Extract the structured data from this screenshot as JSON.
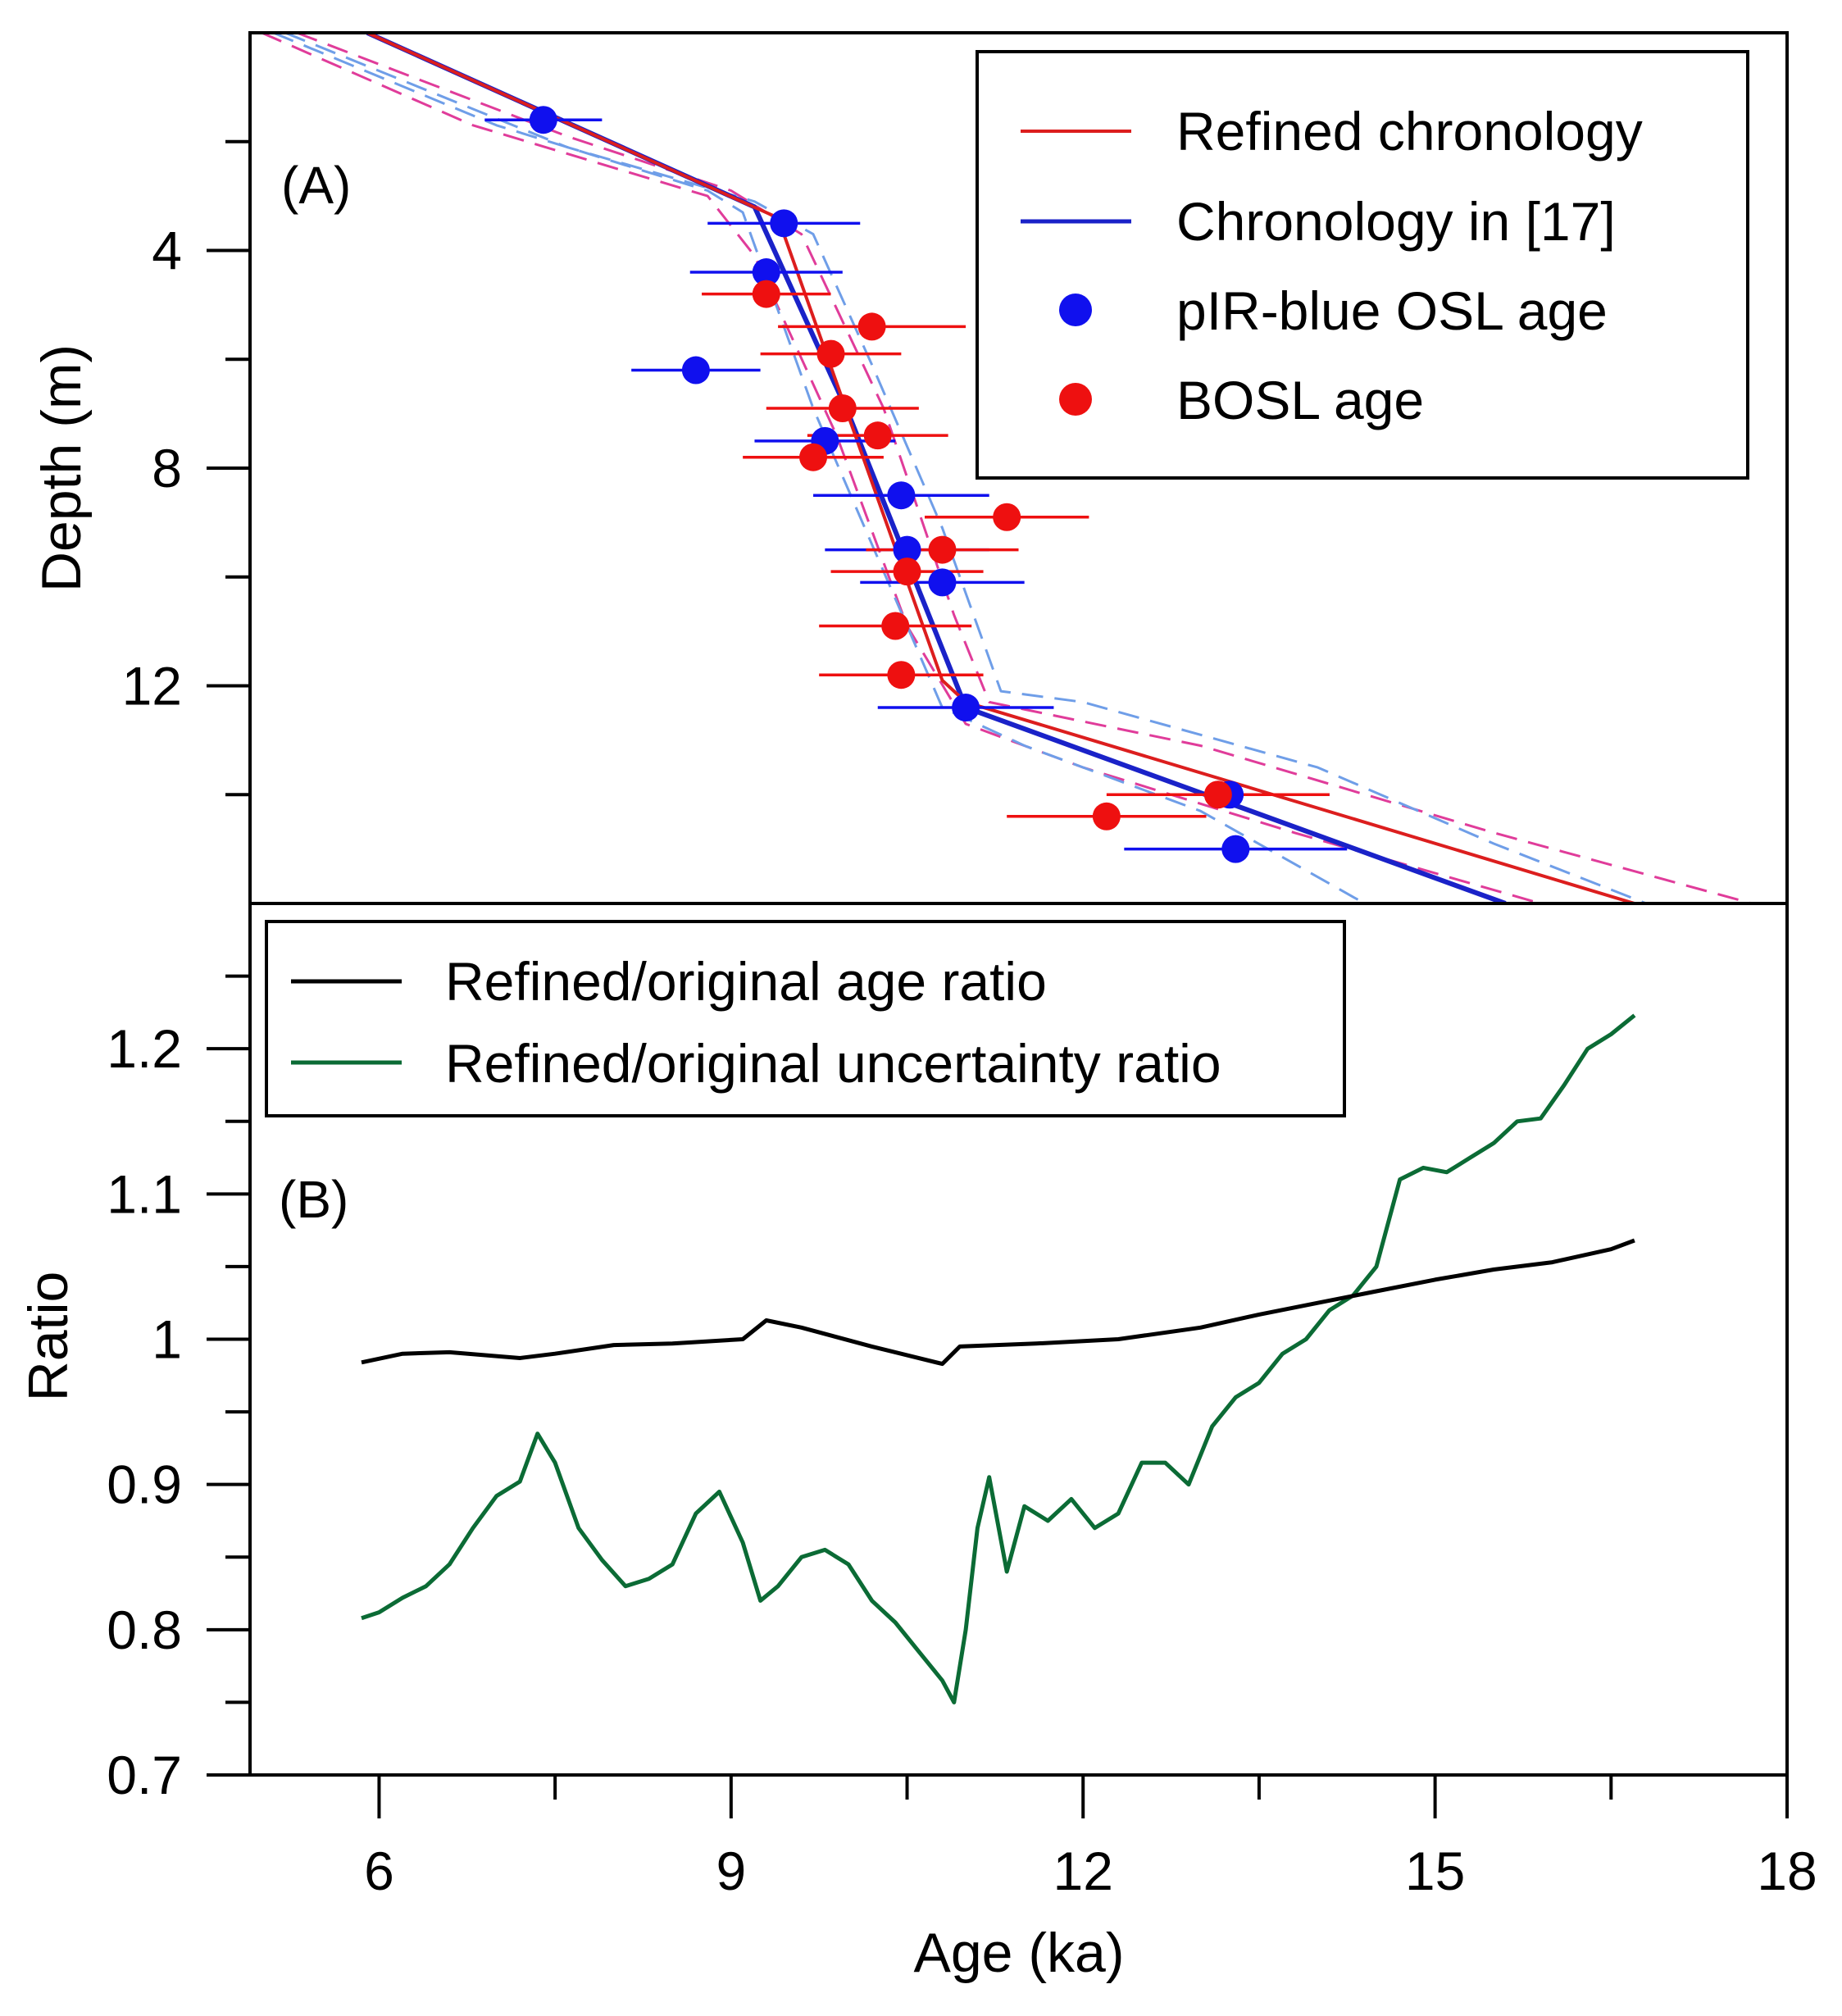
{
  "chart_data": [
    {
      "panel": "A",
      "type": "line",
      "panel_label": "(A)",
      "xlabel": "Age (ka)",
      "ylabel": "Depth (m)",
      "xlim": [
        4.9,
        18
      ],
      "ylim": [
        0,
        16
      ],
      "y_inverted": true,
      "yticks": [
        4,
        8,
        12
      ],
      "legend_position": "top-right",
      "legend": [
        {
          "label": "Refined chronology",
          "color": "#dc1e1e",
          "kind": "line"
        },
        {
          "label": "Chronology in [17]",
          "color": "#1a22c8",
          "kind": "line"
        },
        {
          "label": "pIR-blue OSL age",
          "color": "#1010ee",
          "kind": "marker"
        },
        {
          "label": "BOSL age",
          "color": "#ee1010",
          "kind": "marker"
        }
      ],
      "series": [
        {
          "name": "Refined chronology",
          "color": "#dc1e1e",
          "x": [
            5.9,
            9.4,
            10.8,
            11.0,
            16.7
          ],
          "y": [
            0.0,
            3.4,
            11.9,
            12.3,
            16.0
          ]
        },
        {
          "name": "Chronology in [17]",
          "color": "#1a22c8",
          "x": [
            5.9,
            9.2,
            10.0,
            11.0,
            15.6
          ],
          "y": [
            0.0,
            3.2,
            7.0,
            12.4,
            16.0
          ]
        },
        {
          "name": "Refined chronology uncertainty (upper)",
          "color": "#e03c9a",
          "dashed": true,
          "x": [
            5.3,
            7.6,
            9.0,
            9.6,
            10.3,
            10.9,
            11.2,
            13.0,
            15.5,
            17.7
          ],
          "y": [
            0.0,
            1.9,
            2.9,
            3.7,
            6.9,
            10.7,
            12.3,
            13.1,
            14.7,
            16.0
          ]
        },
        {
          "name": "Refined chronology uncertainty (lower)",
          "color": "#e03c9a",
          "dashed": true,
          "x": [
            5.0,
            6.8,
            8.8,
            9.2,
            9.9,
            10.5,
            11.0,
            12.0,
            13.8,
            15.9
          ],
          "y": [
            0.0,
            1.7,
            3.0,
            4.1,
            7.4,
            10.9,
            12.7,
            13.5,
            14.7,
            16.0
          ]
        },
        {
          "name": "Chronology in [17] uncertainty (upper)",
          "color": "#6f9ee8",
          "dashed": true,
          "x": [
            5.2,
            7.6,
            9.2,
            9.7,
            10.2,
            10.8,
            11.3,
            12.0,
            14.0,
            15.5,
            16.8
          ],
          "y": [
            0.0,
            2.1,
            3.1,
            3.7,
            6.1,
            9.1,
            12.1,
            12.3,
            13.5,
            14.9,
            16.0
          ]
        },
        {
          "name": "Chronology in [17] uncertainty (lower)",
          "color": "#6f9ee8",
          "dashed": true,
          "x": [
            5.1,
            7.0,
            8.8,
            9.1,
            9.7,
            10.3,
            10.8,
            11.5,
            13.0,
            14.4
          ],
          "y": [
            0.0,
            1.7,
            2.9,
            3.3,
            6.9,
            9.9,
            12.4,
            13.1,
            14.3,
            16.0
          ]
        }
      ],
      "points": [
        {
          "name": "pIR-blue OSL age",
          "color": "#1010ee",
          "x": [
            7.4,
            9.45,
            9.3,
            8.7,
            9.8,
            10.45,
            10.5,
            10.8,
            11.0,
            13.25,
            13.3
          ],
          "y": [
            1.6,
            3.5,
            4.4,
            6.2,
            7.5,
            8.5,
            9.5,
            10.1,
            12.4,
            14.0,
            15.0
          ],
          "xerr": [
            0.5,
            0.65,
            0.65,
            0.55,
            0.6,
            0.75,
            0.7,
            0.7,
            0.75,
            0.85,
            0.95
          ]
        },
        {
          "name": "BOSL age",
          "color": "#ee1010",
          "x": [
            9.3,
            10.2,
            9.85,
            9.95,
            10.25,
            9.7,
            11.35,
            10.8,
            10.5,
            10.4,
            10.45,
            13.15,
            12.2
          ],
          "y": [
            4.8,
            5.4,
            5.9,
            6.9,
            7.4,
            7.8,
            8.9,
            9.5,
            9.9,
            10.9,
            11.8,
            14.0,
            14.4
          ],
          "xerr": [
            0.55,
            0.8,
            0.6,
            0.65,
            0.6,
            0.6,
            0.7,
            0.65,
            0.65,
            0.65,
            0.7,
            0.95,
            0.85
          ]
        }
      ]
    },
    {
      "panel": "B",
      "type": "line",
      "panel_label": "(B)",
      "xlabel": "Age (ka)",
      "ylabel": "Ratio",
      "xlim": [
        4.9,
        18
      ],
      "ylim": [
        0.7,
        1.3
      ],
      "xticks": [
        6,
        9,
        12,
        15,
        18
      ],
      "xtick_labels": [
        "6",
        "9",
        "12",
        "15",
        "18"
      ],
      "yticks": [
        0.7,
        0.8,
        0.9,
        1,
        1.1,
        1.2
      ],
      "ytick_labels": [
        "0.7",
        "0.8",
        "0.9",
        "1",
        "1.1",
        "1.2"
      ],
      "legend_position": "top-left",
      "legend": [
        {
          "label": "Refined/original age ratio",
          "color": "#000000"
        },
        {
          "label": "Refined/original uncertainty ratio",
          "color": "#0b6b35"
        }
      ],
      "series": [
        {
          "name": "Refined/original age ratio",
          "color": "#000000",
          "x": [
            5.85,
            6.2,
            6.6,
            7.2,
            7.5,
            8.0,
            8.5,
            9.1,
            9.3,
            9.6,
            10.2,
            10.8,
            10.95,
            11.6,
            12.3,
            13.0,
            13.5,
            14.0,
            14.5,
            15.0,
            15.5,
            16.0,
            16.5,
            16.7
          ],
          "y": [
            0.984,
            0.99,
            0.991,
            0.987,
            0.99,
            0.996,
            0.997,
            1.0,
            1.013,
            1.008,
            0.995,
            0.983,
            0.995,
            0.997,
            1.0,
            1.008,
            1.017,
            1.025,
            1.033,
            1.041,
            1.048,
            1.053,
            1.062,
            1.068
          ]
        },
        {
          "name": "Refined/original uncertainty ratio",
          "color": "#0b6b35",
          "x": [
            5.85,
            6.0,
            6.2,
            6.4,
            6.6,
            6.8,
            7.0,
            7.2,
            7.35,
            7.5,
            7.7,
            7.9,
            8.1,
            8.3,
            8.5,
            8.7,
            8.9,
            9.1,
            9.25,
            9.4,
            9.6,
            9.8,
            10.0,
            10.2,
            10.4,
            10.6,
            10.8,
            10.9,
            11.0,
            11.1,
            11.2,
            11.35,
            11.5,
            11.7,
            11.9,
            12.1,
            12.3,
            12.5,
            12.7,
            12.9,
            13.1,
            13.3,
            13.5,
            13.7,
            13.9,
            14.1,
            14.3,
            14.5,
            14.7,
            14.9,
            15.1,
            15.3,
            15.5,
            15.7,
            15.9,
            16.1,
            16.3,
            16.5,
            16.7
          ],
          "y": [
            0.808,
            0.812,
            0.822,
            0.83,
            0.845,
            0.87,
            0.892,
            0.902,
            0.935,
            0.915,
            0.87,
            0.848,
            0.83,
            0.835,
            0.845,
            0.88,
            0.895,
            0.86,
            0.82,
            0.83,
            0.85,
            0.855,
            0.845,
            0.82,
            0.805,
            0.785,
            0.765,
            0.75,
            0.8,
            0.87,
            0.905,
            0.84,
            0.885,
            0.875,
            0.89,
            0.87,
            0.88,
            0.915,
            0.915,
            0.9,
            0.94,
            0.96,
            0.97,
            0.99,
            1.0,
            1.02,
            1.03,
            1.05,
            1.11,
            1.118,
            1.115,
            1.125,
            1.135,
            1.15,
            1.152,
            1.175,
            1.2,
            1.21,
            1.223
          ]
        }
      ]
    }
  ]
}
